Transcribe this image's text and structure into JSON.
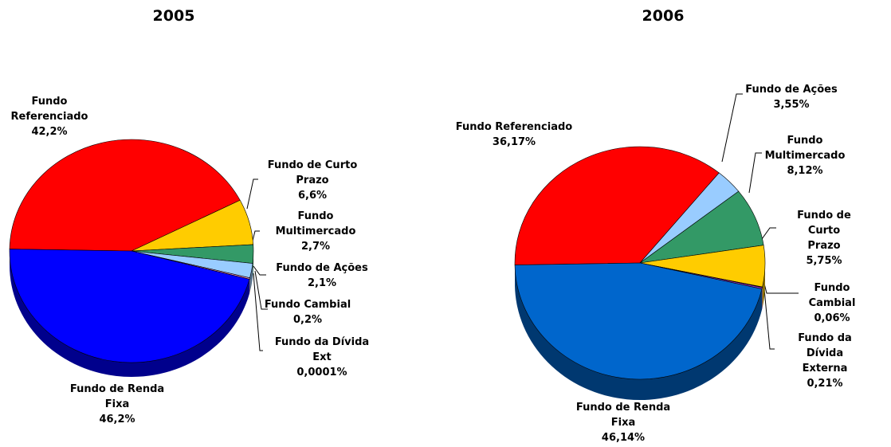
{
  "chart_data": [
    {
      "type": "pie",
      "title": "2005",
      "categories": [
        "Fundo\nReferenciado",
        "Fundo de Curto\nPrazo",
        "Fundo\nMultimercado",
        "Fundo de Ações",
        "Fundo Cambial",
        "Fundo da Dívida\nExt",
        "Fundo de Renda\nFixa"
      ],
      "values": [
        42.2,
        6.6,
        2.7,
        2.1,
        0.2,
        0.0001,
        46.2
      ],
      "value_labels": [
        "42,2%",
        "6,6%",
        "2,7%",
        "2,1%",
        "0,2%",
        "0,0001%",
        "46,2%"
      ],
      "colors": [
        "#ff0000",
        "#ffcc00",
        "#339966",
        "#99ccff",
        "#ff99cc",
        "#9933cc",
        "#0000ff"
      ]
    },
    {
      "type": "pie",
      "title": "2006",
      "categories": [
        "Fundo Referenciado",
        "Fundo de Ações",
        "Fundo\nMultimercado",
        "Fundo de Curto\nPrazo",
        "Fundo Cambial",
        "Fundo da Dívida\nExterna",
        "Fundo de Renda\nFixa"
      ],
      "values": [
        36.17,
        3.55,
        8.12,
        5.75,
        0.06,
        0.21,
        46.14
      ],
      "value_labels": [
        "36,17%",
        "3,55%",
        "8,12%",
        "5,75%",
        "0,06%",
        "0,21%",
        "46,14%"
      ],
      "colors": [
        "#ff0000",
        "#99ccff",
        "#339966",
        "#ffcc00",
        "#ff99cc",
        "#9933cc",
        "#0066cc"
      ]
    }
  ]
}
